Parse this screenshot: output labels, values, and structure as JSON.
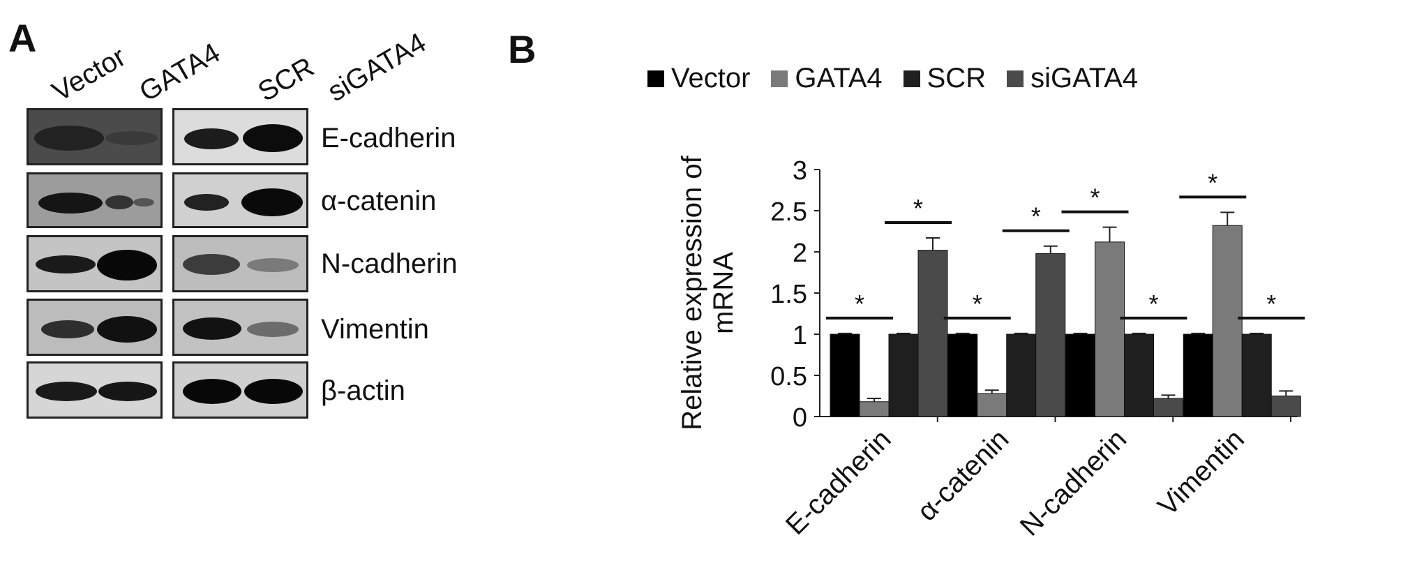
{
  "panelA": {
    "label": "A",
    "lanes_left": [
      "Vector",
      "GATA4"
    ],
    "lanes_right": [
      "SCR",
      "siGATA4"
    ],
    "proteins": [
      "E-cadherin",
      "α-catenin",
      "N-cadherin",
      "Vimentin",
      "β-actin"
    ]
  },
  "panelB": {
    "label": "B"
  },
  "chart_data": {
    "type": "bar",
    "categories": [
      "E-cadherin",
      "α-catenin",
      "N-cadherin",
      "Vimentin"
    ],
    "series": [
      {
        "name": "Vector",
        "values": [
          1.0,
          1.0,
          1.0,
          1.0
        ],
        "errors": [
          0.01,
          0.01,
          0.01,
          0.01
        ],
        "color": "#000000"
      },
      {
        "name": "GATA4",
        "values": [
          0.18,
          0.28,
          2.12,
          2.32
        ],
        "errors": [
          0.04,
          0.04,
          0.18,
          0.16
        ],
        "color": "#7a7a7a"
      },
      {
        "name": "SCR",
        "values": [
          1.0,
          1.0,
          1.0,
          1.0
        ],
        "errors": [
          0.01,
          0.01,
          0.01,
          0.01
        ],
        "color": "#1f1f1f"
      },
      {
        "name": "siGATA4",
        "values": [
          2.02,
          1.98,
          0.22,
          0.25
        ],
        "errors": [
          0.15,
          0.09,
          0.04,
          0.06
        ],
        "color": "#4a4a4a"
      }
    ],
    "significance": [
      {
        "category": 0,
        "pair": [
          0,
          1
        ],
        "label": "*"
      },
      {
        "category": 0,
        "pair": [
          2,
          3
        ],
        "label": "*"
      },
      {
        "category": 1,
        "pair": [
          0,
          1
        ],
        "label": "*"
      },
      {
        "category": 1,
        "pair": [
          2,
          3
        ],
        "label": "*"
      },
      {
        "category": 2,
        "pair": [
          0,
          1
        ],
        "label": "*"
      },
      {
        "category": 2,
        "pair": [
          2,
          3
        ],
        "label": "*"
      },
      {
        "category": 3,
        "pair": [
          0,
          1
        ],
        "label": "*"
      },
      {
        "category": 3,
        "pair": [
          2,
          3
        ],
        "label": "*"
      }
    ],
    "ylabel_line1": "Relative expression of",
    "ylabel_line2": "mRNA",
    "ylim": [
      0,
      3
    ],
    "yticks": [
      "0",
      "0.5",
      "1",
      "1.5",
      "2",
      "2.5",
      "3"
    ],
    "grid": false,
    "legend_position": "top"
  }
}
